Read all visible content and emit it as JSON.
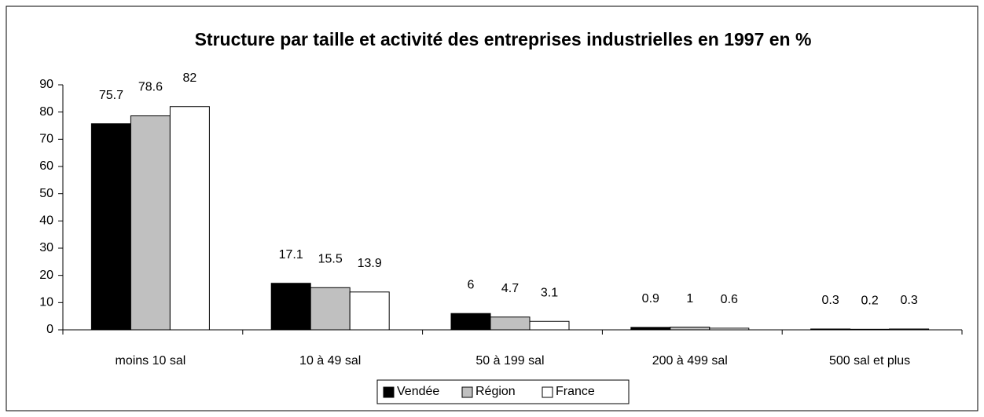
{
  "chart_data": {
    "type": "bar",
    "title": "Structure par taille et activité des entreprises industrielles en 1997 en %",
    "categories": [
      "moins 10 sal",
      "10 à 49 sal",
      "50 à 199 sal",
      "200 à 499 sal",
      "500 sal et plus"
    ],
    "series": [
      {
        "name": "Vendée",
        "color": "#000000",
        "values": [
          75.7,
          17.1,
          6,
          0.9,
          0.3
        ]
      },
      {
        "name": "Région",
        "color": "#c0c0c0",
        "values": [
          78.6,
          15.5,
          4.7,
          1,
          0.2
        ]
      },
      {
        "name": "France",
        "color": "#ffffff",
        "values": [
          82,
          13.9,
          3.1,
          0.6,
          0.3
        ]
      }
    ],
    "ylim": [
      0,
      90
    ],
    "yticks": [
      0,
      10,
      20,
      30,
      40,
      50,
      60,
      70,
      80,
      90
    ],
    "grid": false,
    "legend": "bottom"
  }
}
